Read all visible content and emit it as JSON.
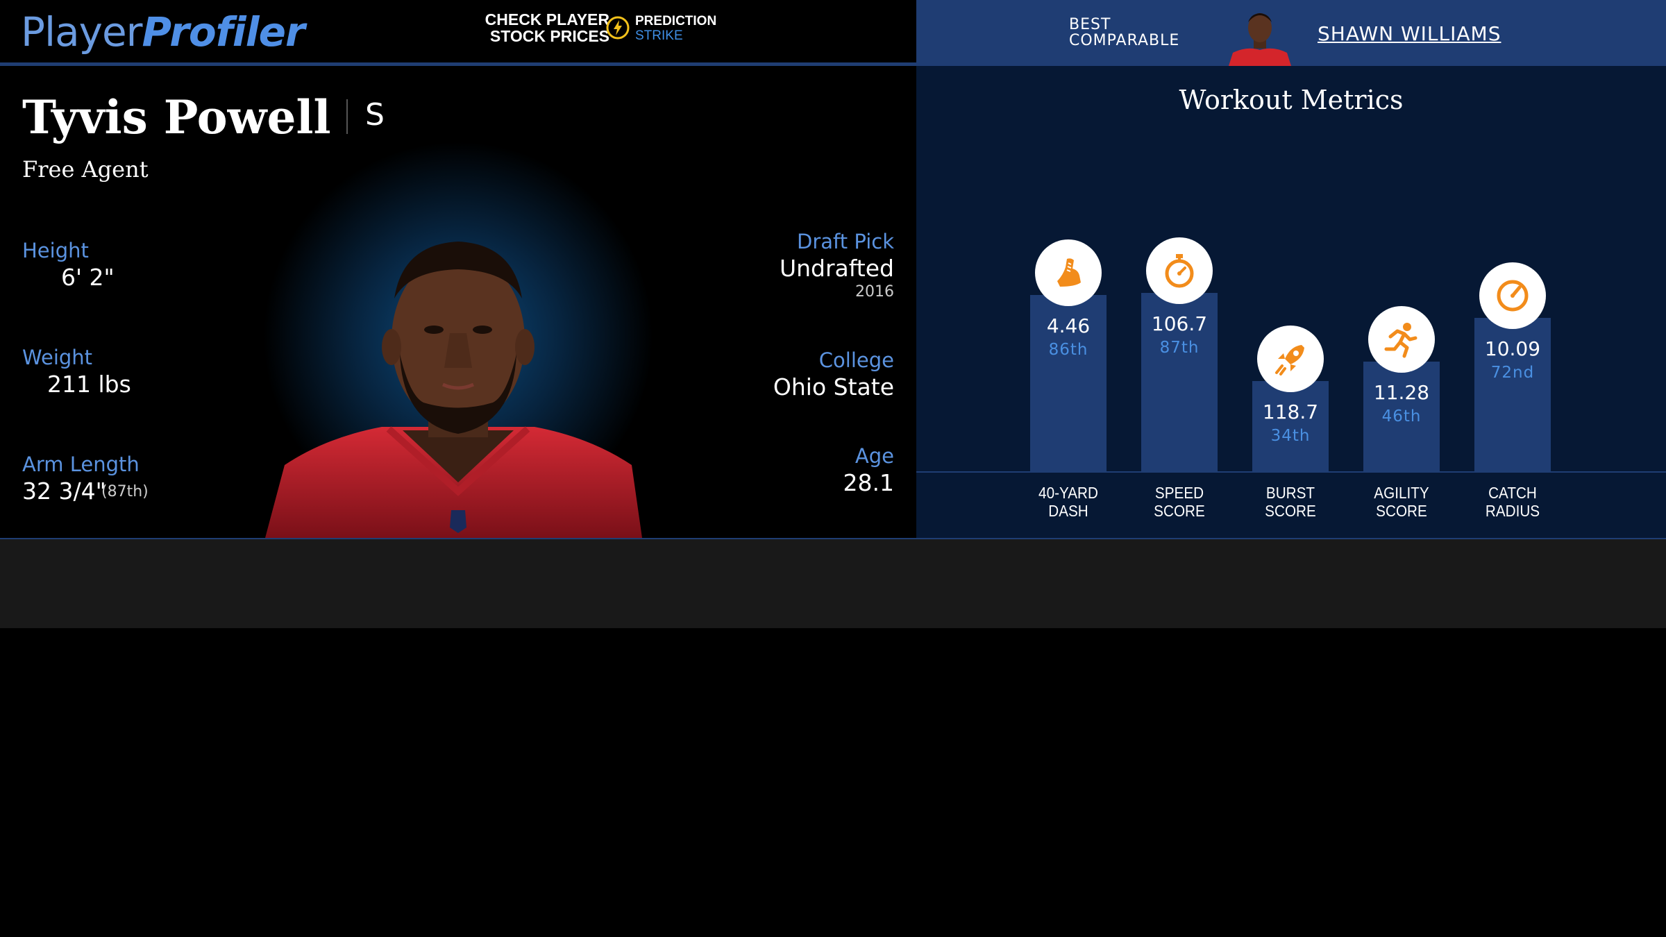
{
  "header": {
    "logo_part1": "Player",
    "logo_part2": "Profiler",
    "stock_line1": "CHECK PLAYER",
    "stock_line2": "STOCK PRICES",
    "partner_line1": "PREDICTION",
    "partner_line2": "STRIKE",
    "best_line1": "BEST",
    "best_line2": "COMPARABLE",
    "comparable_name": "SHAWN WILLIAMS"
  },
  "player": {
    "name": "Tyvis Powell",
    "position": "S",
    "team": "Free Agent"
  },
  "stats_left": {
    "height_label": "Height",
    "height_value": "6' 2\"",
    "weight_label": "Weight",
    "weight_value": "211 lbs",
    "arm_label": "Arm Length",
    "arm_value": "32 3/4\"",
    "arm_pct": "(87th)"
  },
  "stats_right": {
    "draft_label": "Draft Pick",
    "draft_value": "Undrafted",
    "draft_year": "2016",
    "college_label": "College",
    "college_value": "Ohio State",
    "age_label": "Age",
    "age_value": "28.1"
  },
  "workout": {
    "title": "Workout Metrics",
    "icon_color": "#f28c1b",
    "bar_color": "#1f3d73",
    "metrics": [
      {
        "label1": "40-YARD",
        "label2": "DASH",
        "value": "4.46",
        "percentile": "86th",
        "pct_num": 86,
        "icon": "shoe-icon"
      },
      {
        "label1": "SPEED",
        "label2": "SCORE",
        "value": "106.7",
        "percentile": "87th",
        "pct_num": 87,
        "icon": "stopwatch-icon"
      },
      {
        "label1": "BURST",
        "label2": "SCORE",
        "value": "118.7",
        "percentile": "34th",
        "pct_num": 34,
        "icon": "rocket-icon"
      },
      {
        "label1": "AGILITY",
        "label2": "SCORE",
        "value": "11.28",
        "percentile": "46th",
        "pct_num": 46,
        "icon": "runner-icon"
      },
      {
        "label1": "CATCH",
        "label2": "RADIUS",
        "value": "10.09",
        "percentile": "72nd",
        "pct_num": 72,
        "icon": "gauge-icon"
      }
    ]
  }
}
